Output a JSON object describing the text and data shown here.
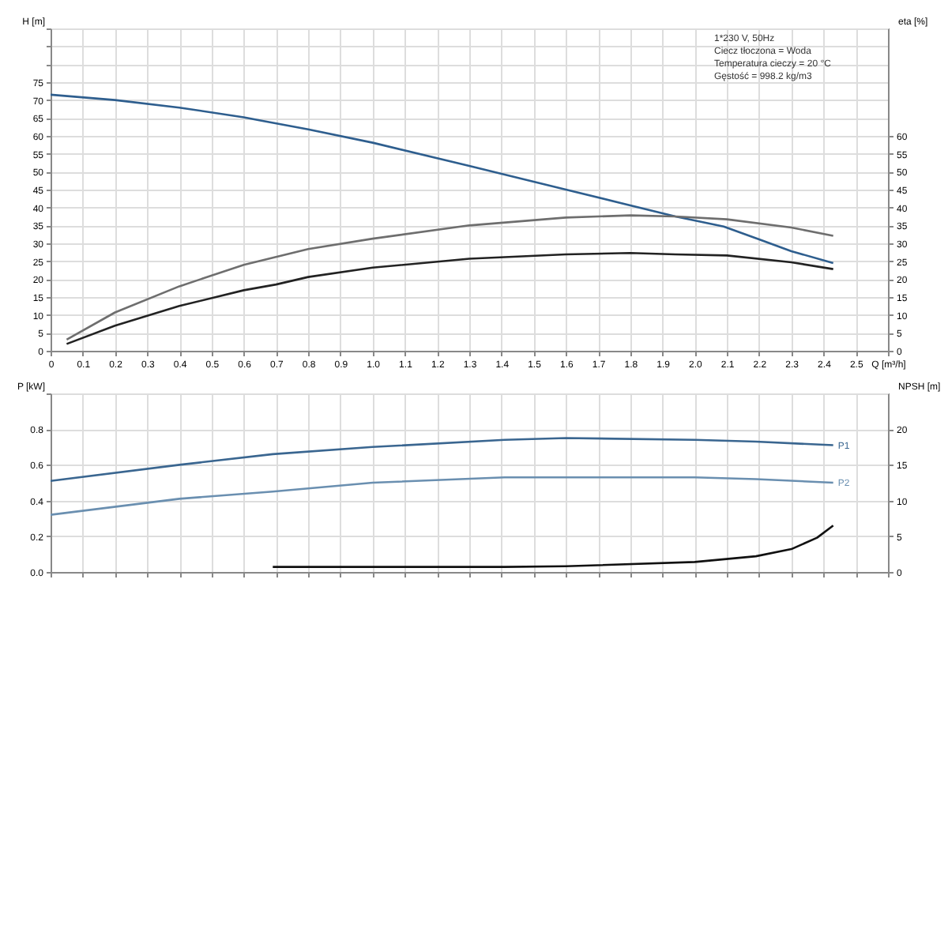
{
  "chart_data": [
    {
      "type": "line",
      "ylabel": "H [m]",
      "y2label": "eta [%]",
      "xlim": [
        0,
        2.6
      ],
      "xticks": [
        0,
        0.1,
        0.2,
        0.3,
        0.4,
        0.5,
        0.6,
        0.7,
        0.8,
        0.9,
        {
          "value": 1,
          "label": "1.0"
        },
        1.1,
        1.2,
        1.3,
        1.4,
        1.5,
        1.6,
        1.7,
        1.8,
        1.9,
        {
          "value": 2,
          "label": "2.0"
        },
        2.1,
        2.2,
        2.3,
        2.4,
        2.5,
        {
          "value": 2.6,
          "label": "Q [m³/h]"
        }
      ],
      "ylim": [
        0,
        90
      ],
      "yticks": [
        0,
        5,
        10,
        15,
        20,
        25,
        30,
        35,
        40,
        45,
        50,
        55,
        60,
        65,
        70,
        75,
        {
          "value": 80,
          "label": null
        },
        {
          "value": 85,
          "label": null
        },
        {
          "value": 90,
          "label": null
        }
      ],
      "y2lim": [
        0,
        90
      ],
      "y2ticks": [
        0,
        5,
        10,
        15,
        20,
        25,
        30,
        35,
        40,
        45,
        50,
        55,
        60
      ],
      "grid": true,
      "tick_labels": "xy",
      "annotations": [
        "1*230 V, 50Hz",
        "Ciecz tłoczona = Woda",
        "Temperatura cieczy = 20 °C",
        "Gęstość = 998.2 kg/m3"
      ],
      "series": [
        {
          "color": "#2e5e8e",
          "x": [
            0,
            0.2,
            0.4,
            0.6,
            0.645,
            0.8,
            1.0,
            1.3,
            1.6,
            1.94,
            2.09,
            2.2,
            2.3,
            2.43
          ],
          "values": [
            71.5,
            70,
            67.9,
            65.2,
            64.4,
            61.8,
            58.1,
            51.6,
            45,
            37.5,
            34.7,
            31.1,
            27.8,
            24.5
          ]
        },
        {
          "color": "#6e6e6e",
          "axis": "y2",
          "x": [
            0.05,
            0.2,
            0.4,
            0.6,
            0.8,
            1.0,
            1.3,
            1.6,
            1.8,
            1.94,
            2.1,
            2.3,
            2.43
          ],
          "values": [
            3.1,
            10.7,
            18,
            24,
            28.4,
            31.3,
            35,
            37.2,
            37.8,
            37.5,
            36.7,
            34.4,
            32.1
          ]
        },
        {
          "color": "#222222",
          "axis": "y2",
          "x": [
            0.05,
            0.2,
            0.4,
            0.6,
            0.7,
            0.8,
            1.0,
            1.3,
            1.6,
            1.8,
            1.94,
            2.1,
            2.3,
            2.43
          ],
          "values": [
            1.9,
            7,
            12.5,
            16.9,
            18.5,
            20.6,
            23.2,
            25.7,
            26.9,
            27.3,
            26.9,
            26.6,
            24.7,
            22.8
          ]
        }
      ]
    },
    {
      "type": "line",
      "ylabel": "P [kW]",
      "y2label": "NPSH [m]",
      "xlim": [
        0,
        2.6
      ],
      "xticks": [
        0,
        0.1,
        0.2,
        0.3,
        0.4,
        0.5,
        0.6,
        0.7,
        0.8,
        0.9,
        1.0,
        1.1,
        1.2,
        1.3,
        1.4,
        1.5,
        1.6,
        1.7,
        1.8,
        1.9,
        2.0,
        2.1,
        2.2,
        2.3,
        2.4,
        2.5,
        2.6
      ],
      "ylim": [
        0,
        1
      ],
      "yticks": [
        {
          "value": 0,
          "label": "0.0"
        },
        0.2,
        0.4,
        0.6,
        0.8,
        {
          "value": 1,
          "label": null
        }
      ],
      "y2lim": [
        0,
        25
      ],
      "y2ticks": [
        0,
        5,
        10,
        15,
        20
      ],
      "grid": true,
      "tick_labels": "y",
      "series": [
        {
          "name": "P1",
          "color": "#3a6690",
          "x": [
            0,
            0.4,
            0.69,
            1.0,
            1.41,
            1.6,
            2.0,
            2.19,
            2.43
          ],
          "values": [
            0.51,
            0.6,
            0.66,
            0.7,
            0.74,
            0.75,
            0.74,
            0.73,
            0.71
          ]
        },
        {
          "name": "P2",
          "color": "#6a8fb0",
          "x": [
            0,
            0.4,
            0.69,
            1.0,
            1.41,
            1.6,
            2.0,
            2.19,
            2.43
          ],
          "values": [
            0.32,
            0.41,
            0.45,
            0.5,
            0.53,
            0.53,
            0.53,
            0.52,
            0.5
          ]
        },
        {
          "color": "#111111",
          "axis": "y2",
          "x": [
            0.69,
            1.41,
            1.6,
            2.0,
            2.19,
            2.3,
            2.38,
            2.43
          ],
          "values": [
            0.7,
            0.7,
            0.8,
            1.4,
            2.2,
            3.2,
            4.8,
            6.5
          ]
        }
      ]
    }
  ]
}
